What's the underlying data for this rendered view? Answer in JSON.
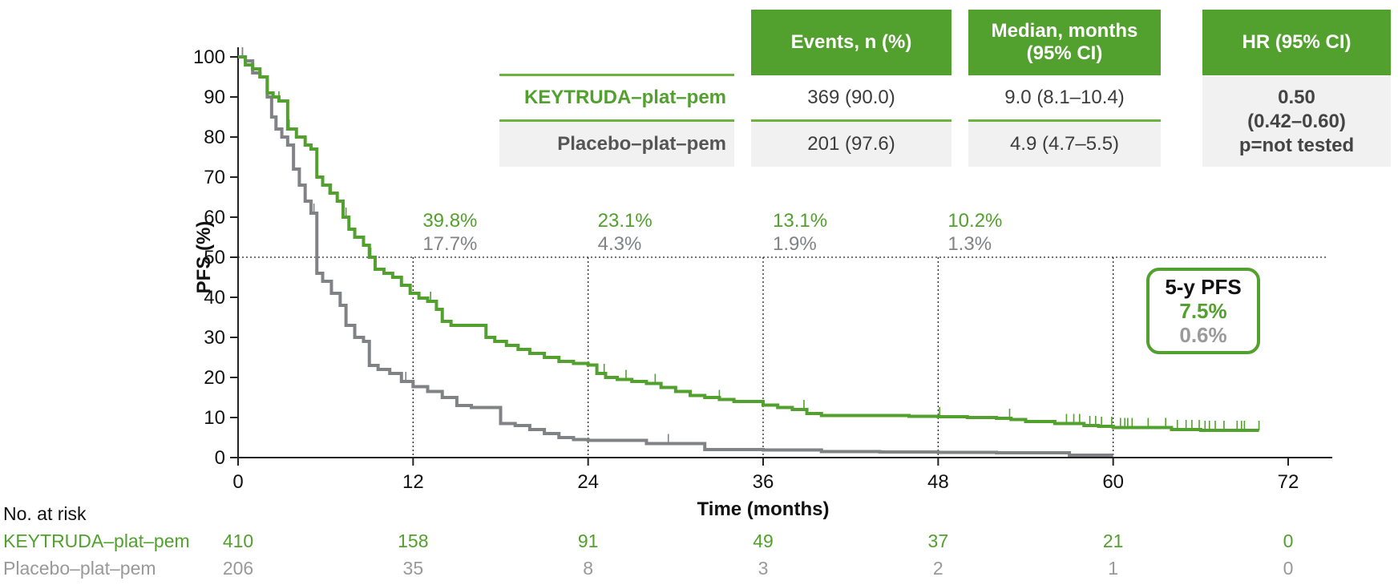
{
  "chart_data": {
    "type": "line",
    "title": "",
    "xlabel": "Time (months)",
    "ylabel": "PFS (%)",
    "xlim": [
      0,
      72
    ],
    "ylim": [
      0,
      100
    ],
    "x_ticks": [
      0,
      12,
      24,
      36,
      48,
      60,
      72
    ],
    "x_tick_labels": [
      "0",
      "12",
      "24",
      "36",
      "48",
      "60",
      "72"
    ],
    "y_ticks": [
      0,
      10,
      20,
      30,
      40,
      50,
      60,
      70,
      80,
      90,
      100
    ],
    "y_tick_labels": [
      "0",
      "10",
      "20",
      "30",
      "40",
      "50",
      "60",
      "70",
      "80",
      "90",
      "100"
    ],
    "reference_line_y": 50,
    "landmark_x": [
      12,
      24,
      36,
      48,
      60
    ],
    "colors": {
      "keytruda": "#52a02e",
      "placebo": "#808285"
    },
    "series": [
      {
        "name": "KEYTRUDA–plat–pem",
        "x": [
          0,
          0.5,
          1.0,
          1.5,
          2.0,
          2.4,
          2.8,
          3.4,
          4.0,
          4.6,
          5.0,
          5.4,
          5.8,
          6.3,
          6.8,
          7.2,
          7.6,
          8.0,
          8.6,
          9.0,
          9.4,
          10.0,
          10.6,
          11.2,
          11.8,
          12.4,
          13.0,
          13.6,
          14.0,
          14.6,
          15.2,
          16.0,
          17.0,
          17.6,
          18.4,
          19.2,
          20.0,
          21.0,
          22.0,
          23.0,
          24.0,
          24.6,
          25.2,
          26.0,
          27.0,
          28.0,
          29.0,
          30.0,
          31.0,
          32.0,
          33.0,
          34.0,
          35.0,
          36.0,
          37.0,
          38.0,
          39.0,
          40.0,
          42.0,
          44.0,
          46.0,
          48.0,
          50.0,
          52.0,
          53.0,
          54.0,
          55.0,
          56.0,
          57.0,
          58.0,
          59.0,
          60.0,
          62.0,
          64.0,
          66.0,
          68.0,
          70.0
        ],
        "y": [
          100,
          98,
          97,
          95,
          91,
          90,
          89,
          82,
          80,
          78,
          77,
          70,
          68,
          66,
          64,
          60,
          57,
          55,
          53,
          50,
          47,
          46,
          45,
          43,
          41,
          39.8,
          39,
          37,
          34,
          33,
          33,
          33,
          30,
          29,
          28,
          27,
          26,
          25,
          24,
          23.5,
          23.1,
          21,
          20,
          19.5,
          19,
          18.5,
          17.5,
          16.5,
          15.5,
          15,
          14.5,
          14,
          14,
          13.1,
          12.5,
          12,
          11,
          10.5,
          10.5,
          10.5,
          10.3,
          10.2,
          10,
          9.8,
          9.5,
          9,
          9,
          8.5,
          8.5,
          8,
          7.8,
          7.5,
          7.5,
          7,
          6.8,
          6.8,
          6.8
        ]
      },
      {
        "name": "Placebo–plat–pem",
        "x": [
          0,
          0.5,
          1.0,
          1.5,
          2.0,
          2.3,
          2.6,
          3.0,
          3.4,
          3.8,
          4.2,
          4.6,
          5.0,
          5.4,
          5.8,
          6.4,
          7.0,
          7.4,
          8.0,
          8.6,
          9.0,
          9.6,
          10.4,
          11.2,
          12.0,
          13.0,
          14.0,
          15.0,
          16.0,
          17.0,
          18.0,
          19.0,
          20.0,
          21.0,
          22.0,
          23.0,
          24.0,
          26.0,
          28.0,
          30.0,
          32.0,
          36.0,
          40.0,
          44.0,
          48.0,
          52.0,
          56.0,
          57.0,
          60.0
        ],
        "y": [
          100,
          99,
          96,
          95,
          90,
          85,
          82,
          80,
          78,
          72,
          68,
          64,
          61,
          46,
          44,
          41,
          38,
          33,
          30,
          29,
          23,
          22,
          21,
          19,
          17.7,
          16.5,
          15,
          13,
          12.5,
          12.5,
          8.5,
          8,
          7,
          6,
          5,
          4.5,
          4.3,
          4.3,
          3.5,
          3.5,
          2,
          1.9,
          1.5,
          1.4,
          1.3,
          1.2,
          1.2,
          0.6,
          0.6
        ]
      }
    ],
    "landmarks": [
      {
        "month": 12,
        "keytruda": "39.8%",
        "placebo": "17.7%"
      },
      {
        "month": 24,
        "keytruda": "23.1%",
        "placebo": "4.3%"
      },
      {
        "month": 36,
        "keytruda": "13.1%",
        "placebo": "1.9%"
      },
      {
        "month": 48,
        "keytruda": "10.2%",
        "placebo": "1.3%"
      }
    ],
    "censor_marks_keytruda": [
      0.3,
      2.8,
      3.5,
      4.0,
      6.4,
      6.8,
      7.4,
      9.1,
      13.2,
      25.1,
      26.6,
      28.6,
      33.0,
      38.8,
      48.1,
      52.9,
      56.8,
      57.3,
      57.7,
      58.4,
      58.8,
      59.2,
      59.9,
      60.5,
      60.8,
      61.0,
      61.3,
      62.4,
      63.6,
      64.4,
      65.0,
      65.4,
      65.9,
      66.3,
      66.6,
      67.0,
      67.6,
      68.5,
      68.8,
      69.0,
      70.0
    ],
    "censor_marks_placebo": [
      0.3,
      5.2,
      11.5,
      18.0,
      29.5
    ]
  },
  "table": {
    "headers": [
      "Events, n (%)",
      "Median, months\n(95% CI)",
      "HR (95% CI)"
    ],
    "header_events": "Events, n (%)",
    "header_median_1": "Median, months",
    "header_median_2": "(95% CI)",
    "header_hr": "HR (95% CI)",
    "rows": [
      {
        "label": "KEYTRUDA–plat–pem",
        "events": "369 (90.0)",
        "median": "9.0 (8.1–10.4)"
      },
      {
        "label": "Placebo–plat–pem",
        "events": "201 (97.6)",
        "median": "4.9 (4.7–5.5)"
      }
    ],
    "hr_value": "0.50",
    "hr_ci": "(0.42–0.60)",
    "hr_p": "p=not tested"
  },
  "pfs5y": {
    "title": "5-y PFS",
    "keytruda": "7.5%",
    "placebo": "0.6%"
  },
  "risk_table": {
    "title": "No. at risk",
    "rows": [
      {
        "label": "KEYTRUDA–plat–pem",
        "values": [
          "410",
          "158",
          "91",
          "49",
          "37",
          "21",
          "0"
        ]
      },
      {
        "label": "Placebo–plat–pem",
        "values": [
          "206",
          "35",
          "8",
          "3",
          "2",
          "1",
          "0"
        ]
      }
    ]
  }
}
